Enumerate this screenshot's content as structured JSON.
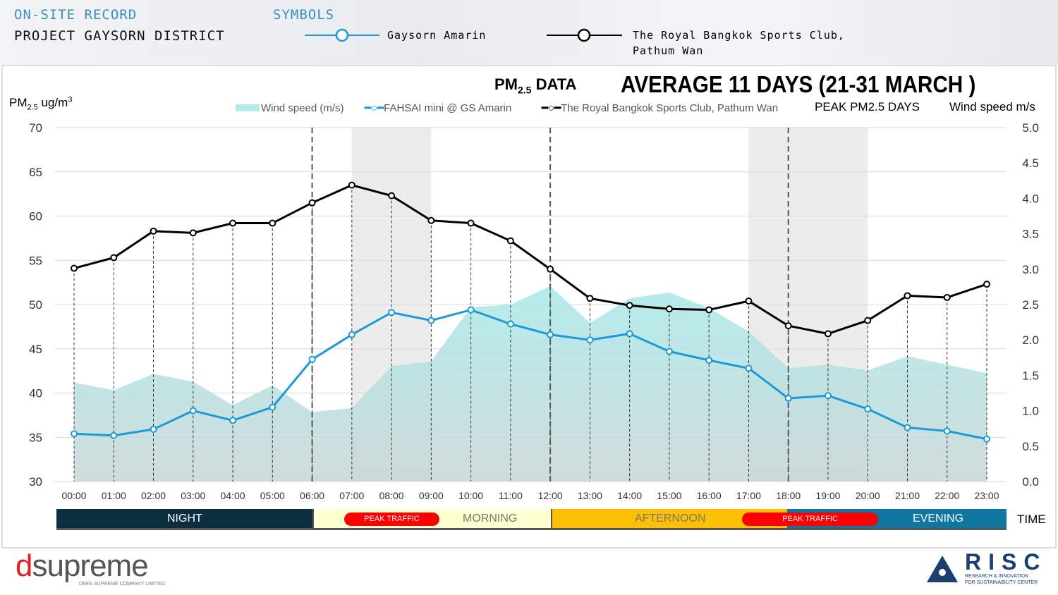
{
  "header": {
    "record_label": "ON-SITE RECORD",
    "project": "PROJECT GAYSORN DISTRICT",
    "symbols_label": "SYMBOLS",
    "symbol_blue": "Gaysorn Amarin",
    "symbol_black_line1": "The Royal Bangkok Sports Club,",
    "symbol_black_line2": "Pathum Wan"
  },
  "chart_data": {
    "type": "line",
    "title_prefix": "PM",
    "title_sub": "2.5",
    "title_suffix": "DATA",
    "subtitle": "AVERAGE 11 DAYS (21-31 MARCH )",
    "ylabel_main": "PM",
    "ylabel_sub": "2.5",
    "ylabel_unit": " ug/m",
    "ylabel_sup": "3",
    "y2label": "Wind speed m/s",
    "peak_label": "PEAK PM2.5 DAYS",
    "xlabel": "TIME",
    "ylim": [
      30,
      70
    ],
    "y2lim": [
      0,
      5
    ],
    "yticks": [
      "70",
      "65",
      "60",
      "55",
      "50",
      "45",
      "40",
      "35",
      "30"
    ],
    "y2ticks": [
      "5.0",
      "4.5",
      "4.0",
      "3.5",
      "3.0",
      "2.5",
      "2.0",
      "1.5",
      "1.0",
      "0.5",
      "0.0"
    ],
    "categories": [
      "00:00",
      "01:00",
      "02:00",
      "03:00",
      "04:00",
      "05:00",
      "06:00",
      "07:00",
      "08:00",
      "09:00",
      "10:00",
      "11:00",
      "12:00",
      "13:00",
      "14:00",
      "15:00",
      "16:00",
      "17:00",
      "18:00",
      "19:00",
      "20:00",
      "21:00",
      "22:00",
      "23:00"
    ],
    "series": [
      {
        "name": "Wind speed (m/s)",
        "type": "area",
        "axis": "right",
        "color": "#b3ebeb",
        "values": [
          1.4,
          1.29,
          1.52,
          1.41,
          1.08,
          1.36,
          0.98,
          1.04,
          1.63,
          1.7,
          2.46,
          2.5,
          2.76,
          2.24,
          2.59,
          2.67,
          2.45,
          2.12,
          1.6,
          1.65,
          1.57,
          1.77,
          1.65,
          1.53
        ]
      },
      {
        "name": "FAHSAI mini @ GS Amarin",
        "type": "line",
        "axis": "left",
        "color": "#1a9ad6",
        "values": [
          35.4,
          35.2,
          35.9,
          38.0,
          36.9,
          38.4,
          43.8,
          46.6,
          49.1,
          48.2,
          49.4,
          47.8,
          46.6,
          46.0,
          46.7,
          44.7,
          43.7,
          42.8,
          39.4,
          39.7,
          38.2,
          36.1,
          35.7,
          34.8
        ]
      },
      {
        "name": "The Royal Bangkok Sports Club, Pathum Wan",
        "type": "line",
        "axis": "left",
        "color": "#000000",
        "values": [
          54.1,
          55.3,
          58.3,
          58.1,
          59.2,
          59.2,
          61.5,
          63.5,
          62.3,
          59.5,
          59.2,
          57.2,
          54.0,
          50.7,
          49.9,
          49.5,
          49.4,
          50.4,
          47.6,
          46.7,
          48.2,
          51.0,
          50.8,
          52.3
        ]
      }
    ],
    "peak_periods": [
      [
        "07:00",
        "09:00"
      ],
      [
        "17:00",
        "20:00"
      ]
    ],
    "period_dividers": [
      "06:00",
      "12:00",
      "18:00"
    ],
    "grid": true,
    "legend": "top"
  },
  "periods": [
    {
      "label": "NIGHT",
      "color": "#0b2f40"
    },
    {
      "label": "MORNING",
      "color": "#ffffd0"
    },
    {
      "label": "AFTERNOON",
      "color": "#ffc000"
    },
    {
      "label": "EVENING",
      "color": "#0e76a0"
    }
  ],
  "peak_traffic": "PEAK TRAFFIC",
  "footer": {
    "left_logo": "dsupreme",
    "left_logo_sub": "DEES SUPREME COMPANY LIMITED",
    "right_logo": "RISC",
    "right_logo_sub1": "RESEARCH & INNOVATION",
    "right_logo_sub2": "FOR SUSTAINABILITY CENTER"
  }
}
